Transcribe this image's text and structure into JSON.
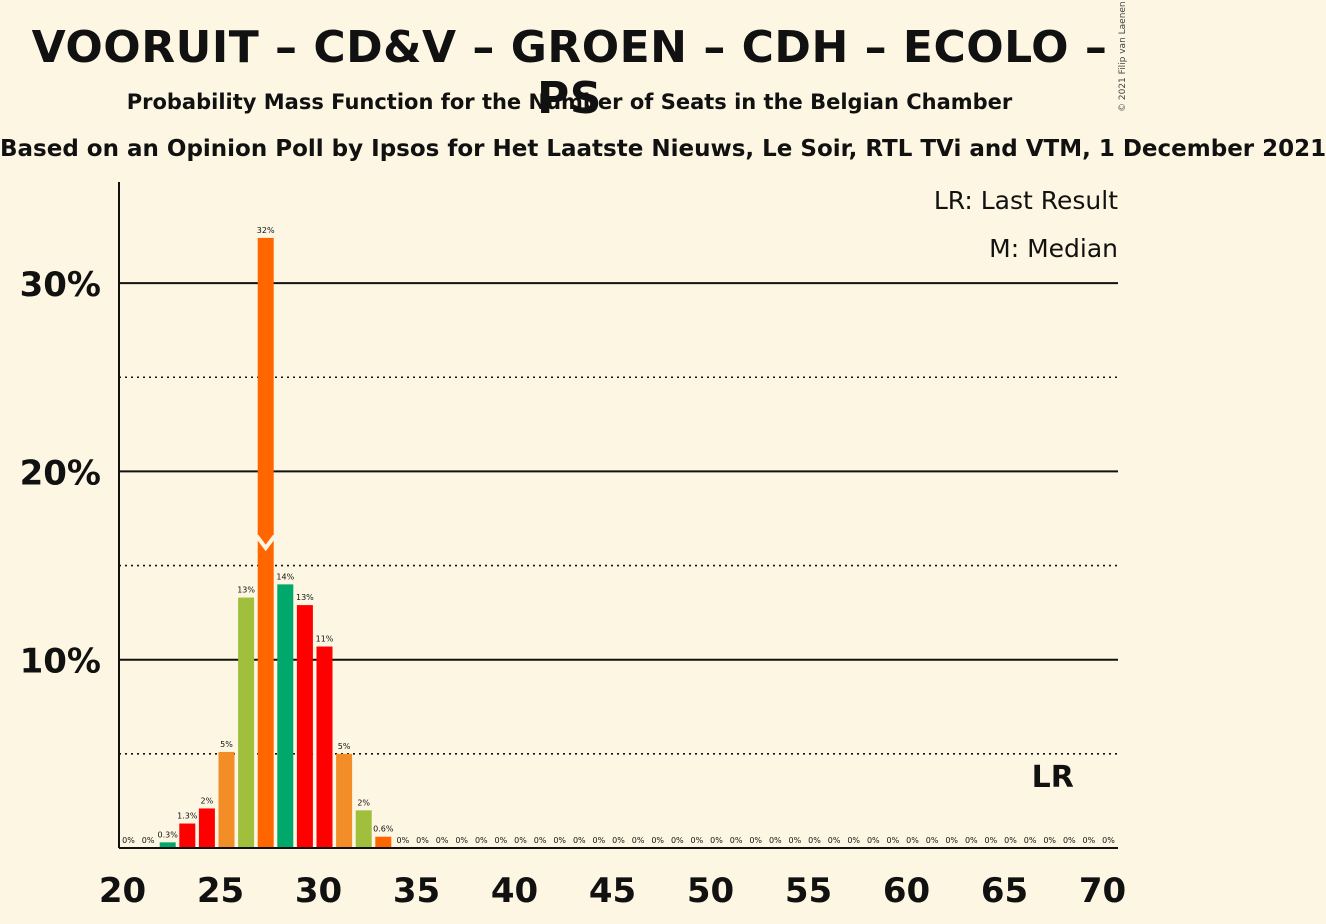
{
  "header": {
    "title": "VOORUIT – CD&V – GROEN – CDH – ECOLO – PS",
    "subtitle": "Probability Mass Function for the Number of Seats in the Belgian Chamber",
    "source": "Based on an Opinion Poll by Ipsos for Het Laatste Nieuws, Le Soir, RTL TVi and VTM, 1 December 2021",
    "copyright": "© 2021 Filip van Laenen"
  },
  "legend": {
    "last_result": "LR: Last Result",
    "median": "M: Median"
  },
  "colors": {
    "background": "#fdf6e3",
    "series": [
      "#FF6600",
      "#00A86B",
      "#FF0000",
      "#A0BF3C",
      "#F28D28"
    ]
  },
  "chart_data": {
    "type": "bar",
    "xlim": [
      20,
      70
    ],
    "ylim": [
      0,
      35
    ],
    "x_ticks": [
      20,
      25,
      30,
      35,
      40,
      45,
      50,
      55,
      60,
      65,
      70
    ],
    "x_tick_labels": [
      "20",
      "25",
      "30",
      "35",
      "40",
      "45",
      "50",
      "55",
      "60",
      "65",
      "70"
    ],
    "y_ticks_solid": [
      10,
      20,
      30
    ],
    "y_tick_labels": [
      "10%",
      "20%",
      "30%"
    ],
    "y_ticks_dotted": [
      5,
      15,
      25
    ],
    "median_seat": 27,
    "last_result_seat": 67,
    "last_result_label": "LR",
    "bars": [
      {
        "seat": 20,
        "value": 0,
        "label": "0%",
        "color": "#F28D28"
      },
      {
        "seat": 21,
        "value": 0,
        "label": "0%",
        "color": "#A0BF3C"
      },
      {
        "seat": 22,
        "value": 0.3,
        "label": "0.3%",
        "color": "#00A86B"
      },
      {
        "seat": 23,
        "value": 1.3,
        "label": "1.3%",
        "color": "#FF0000"
      },
      {
        "seat": 24,
        "value": 2.1,
        "label": "2%",
        "color": "#FF0000"
      },
      {
        "seat": 25,
        "value": 5.1,
        "label": "5%",
        "color": "#F28D28"
      },
      {
        "seat": 26,
        "value": 13.3,
        "label": "13%",
        "color": "#A0BF3C"
      },
      {
        "seat": 27,
        "value": 32.4,
        "label": "32%",
        "color": "#FF6600"
      },
      {
        "seat": 28,
        "value": 14.0,
        "label": "14%",
        "color": "#00A86B"
      },
      {
        "seat": 29,
        "value": 12.9,
        "label": "13%",
        "color": "#FF0000"
      },
      {
        "seat": 30,
        "value": 10.7,
        "label": "11%",
        "color": "#FF0000"
      },
      {
        "seat": 31,
        "value": 5.0,
        "label": "5%",
        "color": "#F28D28"
      },
      {
        "seat": 32,
        "value": 2.0,
        "label": "2%",
        "color": "#A0BF3C"
      },
      {
        "seat": 33,
        "value": 0.6,
        "label": "0.6%",
        "color": "#FF6600"
      },
      {
        "seat": 34,
        "value": 0,
        "label": "0%",
        "color": "#00A86B"
      },
      {
        "seat": 35,
        "value": 0,
        "label": "0%",
        "color": "#FF0000"
      },
      {
        "seat": 36,
        "value": 0,
        "label": "0%",
        "color": "#FF0000"
      },
      {
        "seat": 37,
        "value": 0,
        "label": "0%",
        "color": "#F28D28"
      },
      {
        "seat": 38,
        "value": 0,
        "label": "0%",
        "color": "#A0BF3C"
      },
      {
        "seat": 39,
        "value": 0,
        "label": "0%",
        "color": "#FF6600"
      },
      {
        "seat": 40,
        "value": 0,
        "label": "0%",
        "color": "#00A86B"
      },
      {
        "seat": 41,
        "value": 0,
        "label": "0%",
        "color": "#FF0000"
      },
      {
        "seat": 42,
        "value": 0,
        "label": "0%",
        "color": "#FF0000"
      },
      {
        "seat": 43,
        "value": 0,
        "label": "0%",
        "color": "#F28D28"
      },
      {
        "seat": 44,
        "value": 0,
        "label": "0%",
        "color": "#A0BF3C"
      },
      {
        "seat": 45,
        "value": 0,
        "label": "0%",
        "color": "#FF6600"
      },
      {
        "seat": 46,
        "value": 0,
        "label": "0%",
        "color": "#00A86B"
      },
      {
        "seat": 47,
        "value": 0,
        "label": "0%",
        "color": "#FF0000"
      },
      {
        "seat": 48,
        "value": 0,
        "label": "0%",
        "color": "#FF0000"
      },
      {
        "seat": 49,
        "value": 0,
        "label": "0%",
        "color": "#F28D28"
      },
      {
        "seat": 50,
        "value": 0,
        "label": "0%",
        "color": "#A0BF3C"
      },
      {
        "seat": 51,
        "value": 0,
        "label": "0%",
        "color": "#FF6600"
      },
      {
        "seat": 52,
        "value": 0,
        "label": "0%",
        "color": "#00A86B"
      },
      {
        "seat": 53,
        "value": 0,
        "label": "0%",
        "color": "#FF0000"
      },
      {
        "seat": 54,
        "value": 0,
        "label": "0%",
        "color": "#FF0000"
      },
      {
        "seat": 55,
        "value": 0,
        "label": "0%",
        "color": "#F28D28"
      },
      {
        "seat": 56,
        "value": 0,
        "label": "0%",
        "color": "#A0BF3C"
      },
      {
        "seat": 57,
        "value": 0,
        "label": "0%",
        "color": "#FF6600"
      },
      {
        "seat": 58,
        "value": 0,
        "label": "0%",
        "color": "#00A86B"
      },
      {
        "seat": 59,
        "value": 0,
        "label": "0%",
        "color": "#FF0000"
      },
      {
        "seat": 60,
        "value": 0,
        "label": "0%",
        "color": "#FF0000"
      },
      {
        "seat": 61,
        "value": 0,
        "label": "0%",
        "color": "#F28D28"
      },
      {
        "seat": 62,
        "value": 0,
        "label": "0%",
        "color": "#A0BF3C"
      },
      {
        "seat": 63,
        "value": 0,
        "label": "0%",
        "color": "#FF6600"
      },
      {
        "seat": 64,
        "value": 0,
        "label": "0%",
        "color": "#00A86B"
      },
      {
        "seat": 65,
        "value": 0,
        "label": "0%",
        "color": "#FF0000"
      },
      {
        "seat": 66,
        "value": 0,
        "label": "0%",
        "color": "#FF0000"
      },
      {
        "seat": 67,
        "value": 0,
        "label": "0%",
        "color": "#F28D28"
      },
      {
        "seat": 68,
        "value": 0,
        "label": "0%",
        "color": "#A0BF3C"
      },
      {
        "seat": 69,
        "value": 0,
        "label": "0%",
        "color": "#FF6600"
      },
      {
        "seat": 70,
        "value": 0,
        "label": "0%",
        "color": "#00A86B"
      }
    ]
  }
}
